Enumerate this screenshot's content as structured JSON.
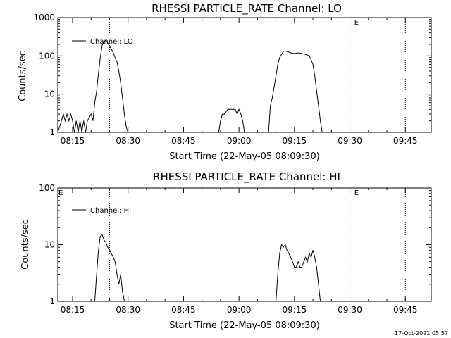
{
  "chart_data": [
    {
      "type": "line",
      "title": "RHESSI PARTICLE_RATE Channel: LO",
      "xlabel": "Start Time (22-May-05 08:09:30)",
      "ylabel": "Counts/sec",
      "y_scale": "log",
      "xlim": [
        "08:11",
        "09:52"
      ],
      "ylim": [
        1,
        1000
      ],
      "x_ticks": [
        "08:15",
        "08:30",
        "08:45",
        "09:00",
        "09:15",
        "09:30",
        "09:45"
      ],
      "y_ticks": [
        "1",
        "10",
        "100",
        "1000"
      ],
      "legend": {
        "label": "Channel: LO",
        "position": "top-left"
      },
      "vlines": [
        "08:25",
        "09:30",
        "09:45"
      ],
      "annotations": [
        {
          "text": "E",
          "x": "09:31"
        }
      ],
      "series": [
        {
          "name": "Channel: LO",
          "points": [
            [
              "08:11",
              1
            ],
            [
              "08:12",
              2
            ],
            [
              "08:12:30",
              3
            ],
            [
              "08:13",
              2
            ],
            [
              "08:13:30",
              3
            ],
            [
              "08:14",
              2
            ],
            [
              "08:14:30",
              3
            ],
            [
              "08:15",
              2
            ],
            [
              "08:15:30",
              1
            ],
            [
              "08:16",
              2
            ],
            [
              "08:16:30",
              1
            ],
            [
              "08:17",
              2
            ],
            [
              "08:17:30",
              1
            ],
            [
              "08:18",
              2
            ],
            [
              "08:18:30",
              1
            ],
            [
              "08:19",
              2
            ],
            [
              "08:20",
              3
            ],
            [
              "08:20:30",
              2
            ],
            [
              "08:21",
              6
            ],
            [
              "08:21:30",
              12
            ],
            [
              "08:22",
              35
            ],
            [
              "08:22:30",
              90
            ],
            [
              "08:23",
              190
            ],
            [
              "08:23:30",
              240
            ],
            [
              "08:24",
              250
            ],
            [
              "08:24:30",
              220
            ],
            [
              "08:25",
              180
            ],
            [
              "08:25:30",
              150
            ],
            [
              "08:26",
              120
            ],
            [
              "08:26:30",
              90
            ],
            [
              "08:27",
              70
            ],
            [
              "08:27:30",
              40
            ],
            [
              "08:28",
              20
            ],
            [
              "08:28:30",
              8
            ],
            [
              "08:29",
              3
            ],
            [
              "08:29:30",
              1.4
            ],
            [
              "08:30",
              1
            ],
            [
              "08:54:30",
              1
            ],
            [
              "08:55",
              2
            ],
            [
              "08:55:30",
              3
            ],
            [
              "08:56",
              3
            ],
            [
              "08:57",
              4
            ],
            [
              "08:58",
              4
            ],
            [
              "08:59",
              4
            ],
            [
              "08:59:30",
              3
            ],
            [
              "09:00",
              4
            ],
            [
              "09:00:30",
              3
            ],
            [
              "09:01",
              2
            ],
            [
              "09:01:30",
              1
            ],
            [
              "09:08",
              1
            ],
            [
              "09:08:30",
              5
            ],
            [
              "09:09",
              8
            ],
            [
              "09:09:30",
              15
            ],
            [
              "09:10",
              30
            ],
            [
              "09:10:30",
              60
            ],
            [
              "09:11",
              90
            ],
            [
              "09:11:30",
              110
            ],
            [
              "09:12",
              130
            ],
            [
              "09:12:30",
              135
            ],
            [
              "09:13",
              130
            ],
            [
              "09:14",
              120
            ],
            [
              "09:15",
              115
            ],
            [
              "09:16",
              120
            ],
            [
              "09:17",
              115
            ],
            [
              "09:18",
              110
            ],
            [
              "09:19",
              100
            ],
            [
              "09:19:30",
              80
            ],
            [
              "09:20",
              60
            ],
            [
              "09:20:30",
              30
            ],
            [
              "09:21",
              12
            ],
            [
              "09:21:30",
              5
            ],
            [
              "09:22",
              2
            ],
            [
              "09:22:30",
              1
            ]
          ]
        }
      ]
    },
    {
      "type": "line",
      "title": "RHESSI PARTICLE_RATE Channel: HI",
      "xlabel": "Start Time (22-May-05 08:09:30)",
      "ylabel": "Counts/sec",
      "y_scale": "log",
      "xlim": [
        "08:11",
        "09:52"
      ],
      "ylim": [
        1,
        100
      ],
      "x_ticks": [
        "08:15",
        "08:30",
        "08:45",
        "09:00",
        "09:15",
        "09:30",
        "09:45"
      ],
      "y_ticks": [
        "1",
        "10",
        "100"
      ],
      "legend": {
        "label": "Channel: HI",
        "position": "top-left"
      },
      "vlines": [
        "08:25",
        "09:30",
        "09:45"
      ],
      "annotations": [
        {
          "text": "E",
          "x": "08:11"
        },
        {
          "text": "E",
          "x": "09:31"
        }
      ],
      "series": [
        {
          "name": "Channel: HI",
          "points": [
            [
              "08:21",
              1
            ],
            [
              "08:21:30",
              3
            ],
            [
              "08:22",
              8
            ],
            [
              "08:22:30",
              14
            ],
            [
              "08:23",
              15
            ],
            [
              "08:23:30",
              12
            ],
            [
              "08:24",
              11
            ],
            [
              "08:24:30",
              9
            ],
            [
              "08:25",
              8
            ],
            [
              "08:25:30",
              7
            ],
            [
              "08:26",
              6
            ],
            [
              "08:26:30",
              5
            ],
            [
              "08:27",
              3
            ],
            [
              "08:27:30",
              2
            ],
            [
              "08:28",
              3
            ],
            [
              "08:28:30",
              1.5
            ],
            [
              "08:29",
              1
            ],
            [
              "09:10",
              1
            ],
            [
              "09:10:30",
              3
            ],
            [
              "09:11",
              7
            ],
            [
              "09:11:30",
              10
            ],
            [
              "09:12",
              9
            ],
            [
              "09:12:30",
              10
            ],
            [
              "09:13",
              8
            ],
            [
              "09:13:30",
              7
            ],
            [
              "09:14",
              6
            ],
            [
              "09:14:30",
              5
            ],
            [
              "09:15",
              4
            ],
            [
              "09:15:30",
              4
            ],
            [
              "09:16",
              5
            ],
            [
              "09:16:30",
              4
            ],
            [
              "09:17",
              4
            ],
            [
              "09:17:30",
              5
            ],
            [
              "09:18",
              6
            ],
            [
              "09:18:30",
              5
            ],
            [
              "09:19",
              7
            ],
            [
              "09:19:30",
              6
            ],
            [
              "09:20",
              8
            ],
            [
              "09:20:30",
              6
            ],
            [
              "09:21",
              4
            ],
            [
              "09:21:30",
              2
            ],
            [
              "09:22",
              1
            ]
          ]
        }
      ]
    }
  ],
  "footer": {
    "timestamp": "17-Oct-2021 05:57"
  },
  "colors": {
    "background": "#ffffff",
    "foreground": "#000000"
  }
}
